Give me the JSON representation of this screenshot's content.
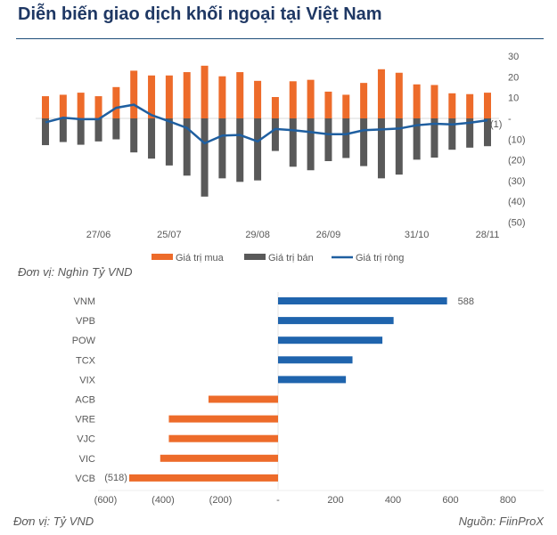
{
  "title": "Diễn biến giao dịch khối ngoại tại Việt Nam",
  "unit_top": "Đơn vị: Nghìn Tỷ VND",
  "unit_bottom": "Đơn vị: Tỷ VND",
  "source": "Nguồn: FiinProX",
  "colors": {
    "buy": "#ed6b2a",
    "sell": "#595959",
    "net": "#1f5fa0",
    "pos": "#1f64ad",
    "neg": "#ed6b2a"
  },
  "chart_data": [
    {
      "type": "bar",
      "title": "",
      "ylim": [
        -50,
        30
      ],
      "yticks": [
        30,
        20,
        10,
        0,
        -10,
        -20,
        -30,
        -40,
        -50
      ],
      "ytick_labels": [
        "30",
        "20",
        "10",
        "-",
        "(10)",
        "(20)",
        "(30)",
        "(40)",
        "(50)"
      ],
      "xtick_labels": [
        {
          "index": 3,
          "label": "27/06"
        },
        {
          "index": 7,
          "label": "25/07"
        },
        {
          "index": 12,
          "label": "29/08"
        },
        {
          "index": 16,
          "label": "26/09"
        },
        {
          "index": 21,
          "label": "31/10"
        },
        {
          "index": 25,
          "label": "28/11"
        }
      ],
      "last_label": "(1)",
      "legend": "bottom",
      "series": [
        {
          "name": "Giá trị mua",
          "type": "bar",
          "values": [
            10.7,
            11.4,
            12.4,
            10.7,
            15.1,
            23.0,
            20.7,
            20.7,
            22.3,
            25.4,
            20.3,
            22.3,
            18.1,
            10.3,
            17.9,
            18.6,
            12.9,
            11.4,
            17.1,
            23.7,
            22.0,
            16.4,
            16.1,
            12.1,
            11.7,
            12.4
          ]
        },
        {
          "name": "Giá trị bán",
          "type": "bar",
          "values": [
            -12.9,
            -11.4,
            -12.7,
            -11.1,
            -10.1,
            -16.4,
            -19.4,
            -22.7,
            -27.6,
            -37.7,
            -28.9,
            -30.6,
            -29.9,
            -15.7,
            -23.3,
            -25.0,
            -20.6,
            -19.1,
            -23.0,
            -28.9,
            -27.1,
            -19.9,
            -18.9,
            -15.1,
            -14.1,
            -13.4
          ]
        },
        {
          "name": "Giá trị ròng",
          "type": "line",
          "values": [
            -1.9,
            0.3,
            -0.4,
            -0.4,
            5.1,
            6.6,
            1.6,
            -1.4,
            -4.6,
            -12.0,
            -8.3,
            -8.0,
            -11.1,
            -5.1,
            -5.7,
            -6.6,
            -7.6,
            -7.6,
            -5.7,
            -5.3,
            -4.9,
            -3.3,
            -2.6,
            -2.9,
            -2.1,
            -0.9
          ]
        }
      ]
    },
    {
      "type": "bar",
      "orientation": "horizontal",
      "categories": [
        "VNM",
        "VPB",
        "POW",
        "TCX",
        "VIX",
        "ACB",
        "VRE",
        "VJC",
        "VIC",
        "VCB"
      ],
      "values": [
        588,
        402,
        363,
        259,
        236,
        -242,
        -380,
        -380,
        -410,
        -518
      ],
      "data_labels": {
        "VNM": "588",
        "VCB": "(518)"
      },
      "xlim": [
        -600,
        800
      ],
      "xticks": [
        -600,
        -400,
        -200,
        0,
        200,
        400,
        600,
        800
      ],
      "xtick_labels": [
        "(600)",
        "(400)",
        "(200)",
        "-",
        "200",
        "400",
        "600",
        "800"
      ]
    }
  ]
}
